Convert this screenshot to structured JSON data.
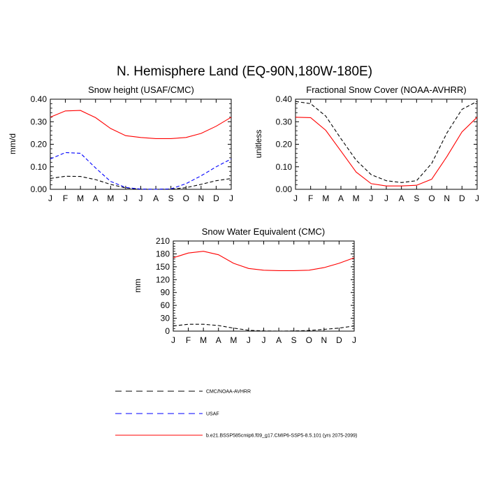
{
  "main_title": "N. Hemisphere Land (EQ-90N,180W-180E)",
  "legend": [
    {
      "label": "CMC/NOAA-AVHRR",
      "color": "#000000",
      "dash": "dashed"
    },
    {
      "label": "USAF",
      "color": "#0000ff",
      "dash": "dashed"
    },
    {
      "label": "b.e21.BSSP585cmip6.f09_g17.CMIP6-SSP5-8.5.101 (yrs 2075-2099)",
      "color": "#ff0000",
      "dash": "solid"
    }
  ],
  "chart_data": [
    {
      "type": "line",
      "title": "Snow height (USAF/CMC)",
      "xlabel": "",
      "ylabel": "mm/d",
      "categories": [
        "J",
        "F",
        "M",
        "A",
        "M",
        "J",
        "J",
        "A",
        "S",
        "O",
        "N",
        "D",
        "J"
      ],
      "ylim": [
        0,
        0.4
      ],
      "yticks": [
        "0.00",
        "0.10",
        "0.20",
        "0.30",
        "0.40"
      ],
      "series": [
        {
          "name": "CMC/NOAA-AVHRR",
          "color": "#000000",
          "dash": "dashed",
          "values": [
            0.048,
            0.058,
            0.057,
            0.043,
            0.022,
            0.006,
            0.001,
            0.0,
            0.001,
            0.007,
            0.022,
            0.038,
            0.048
          ]
        },
        {
          "name": "USAF",
          "color": "#0000ff",
          "dash": "dashed",
          "values": [
            0.135,
            0.163,
            0.16,
            0.095,
            0.035,
            0.008,
            0.001,
            0.0,
            0.002,
            0.025,
            0.06,
            0.1,
            0.135
          ]
        },
        {
          "name": "b.e21.BSSP585cmip6.f09_g17.CMIP6-SSP5-8.5.101 (yrs 2075-2099)",
          "color": "#ff0000",
          "dash": "solid",
          "values": [
            0.32,
            0.348,
            0.35,
            0.318,
            0.27,
            0.238,
            0.23,
            0.225,
            0.225,
            0.23,
            0.248,
            0.28,
            0.32
          ]
        }
      ]
    },
    {
      "type": "line",
      "title": "Fractional Snow Cover (NOAA-AVHRR)",
      "xlabel": "",
      "ylabel": "unitless",
      "categories": [
        "J",
        "F",
        "M",
        "A",
        "M",
        "J",
        "J",
        "A",
        "S",
        "O",
        "N",
        "D",
        "J"
      ],
      "ylim": [
        0,
        0.4
      ],
      "yticks": [
        "0.00",
        "0.10",
        "0.20",
        "0.30",
        "0.40"
      ],
      "series": [
        {
          "name": "CMC/NOAA-AVHRR",
          "color": "#000000",
          "dash": "dashed",
          "values": [
            0.39,
            0.38,
            0.325,
            0.225,
            0.13,
            0.065,
            0.038,
            0.03,
            0.038,
            0.115,
            0.25,
            0.355,
            0.39
          ]
        },
        {
          "name": "b.e21.BSSP585cmip6.f09_g17.CMIP6-SSP5-8.5.101 (yrs 2075-2099)",
          "color": "#ff0000",
          "dash": "solid",
          "values": [
            0.32,
            0.318,
            0.262,
            0.17,
            0.077,
            0.025,
            0.015,
            0.015,
            0.018,
            0.045,
            0.145,
            0.255,
            0.32
          ]
        }
      ]
    },
    {
      "type": "line",
      "title": "Snow Water Equivalent (CMC)",
      "xlabel": "",
      "ylabel": "mm",
      "categories": [
        "J",
        "F",
        "M",
        "A",
        "M",
        "J",
        "J",
        "A",
        "S",
        "O",
        "N",
        "D",
        "J"
      ],
      "ylim": [
        0,
        210
      ],
      "yticks": [
        "0",
        "30",
        "60",
        "90",
        "120",
        "150",
        "180",
        "210"
      ],
      "series": [
        {
          "name": "CMC/NOAA-AVHRR",
          "color": "#000000",
          "dash": "dashed",
          "values": [
            12,
            16,
            16,
            13,
            7,
            2,
            0.5,
            0,
            0.5,
            1.5,
            4,
            7,
            12
          ]
        },
        {
          "name": "b.e21.BSSP585cmip6.f09_g17.CMIP6-SSP5-8.5.101 (yrs 2075-2099)",
          "color": "#ff0000",
          "dash": "solid",
          "values": [
            171,
            182,
            186,
            178,
            158,
            146,
            142,
            141,
            141,
            142,
            148,
            158,
            171
          ]
        }
      ]
    }
  ]
}
